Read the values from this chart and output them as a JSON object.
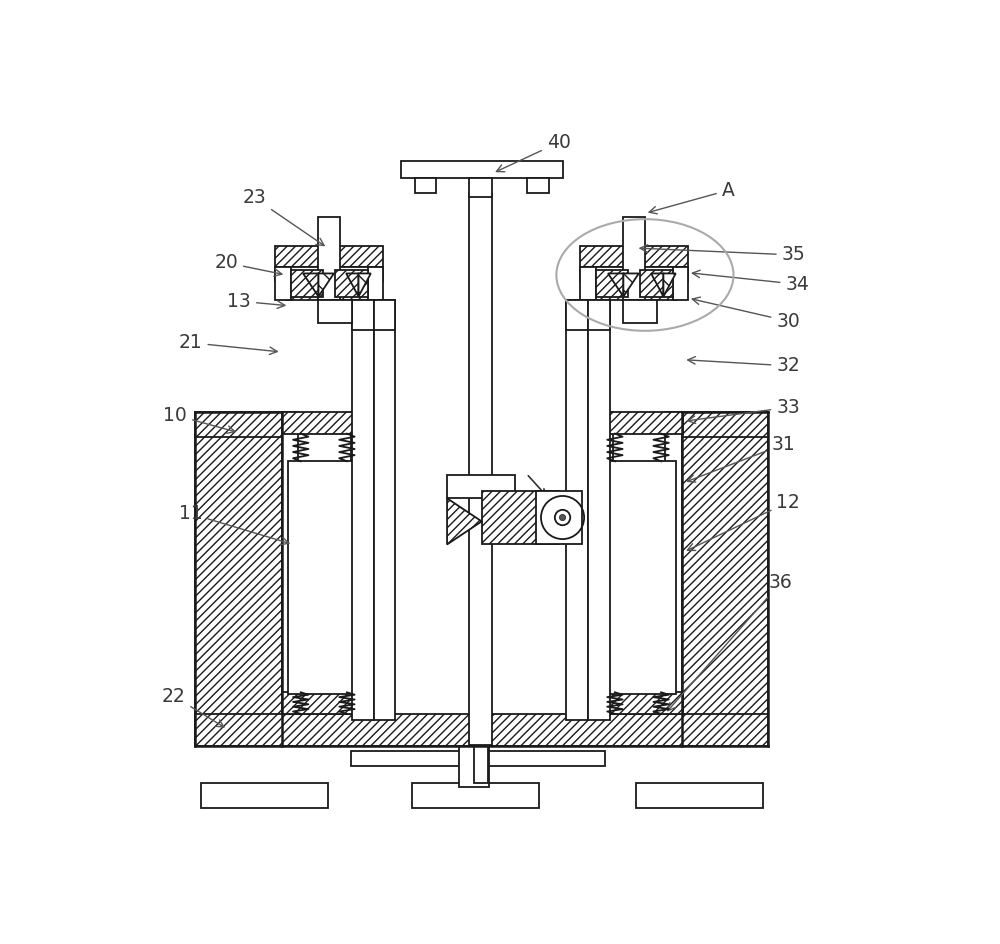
{
  "bg_color": "#ffffff",
  "line_color": "#1a1a1a",
  "label_color": "#3a3a3a",
  "hatch_density": "////",
  "lw": 1.3,
  "lw_thick": 1.8
}
